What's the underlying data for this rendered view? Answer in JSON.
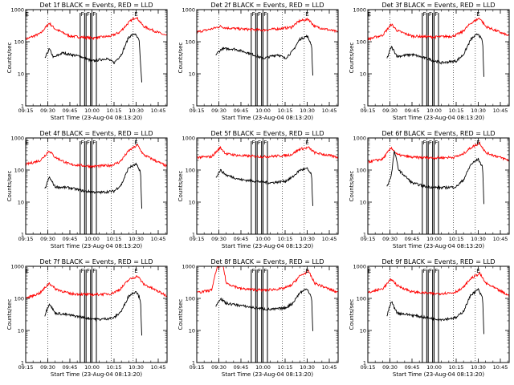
{
  "chart_data": {
    "type": "line",
    "shared": {
      "xlabel": "Start Time (23-Aug-04 08:13:20)",
      "ylabel": "Counts/sec",
      "x_tick_labels": [
        "09:15",
        "09:30",
        "09:45",
        "10:00",
        "10:15",
        "10:30",
        "10:45"
      ],
      "x_tick_minutes": [
        0,
        15,
        30,
        45,
        60,
        75,
        90
      ],
      "xlim_minutes": [
        0,
        96
      ],
      "y_scale": "log",
      "ylim": [
        1,
        1000
      ],
      "y_tick_labels": [
        "1",
        "10",
        "100",
        "1000"
      ],
      "y_tick_values": [
        1,
        10,
        100,
        1000
      ],
      "dotted_vertical_lines_minutes": [
        15,
        58,
        73
      ],
      "series_colors": {
        "events": "#000000",
        "lld": "#ff0000"
      }
    },
    "panels": [
      {
        "title": "Det 1f BLACK = Events, RED = LLD",
        "markers": [
          "E",
          "F",
          "F",
          "F",
          "E"
        ],
        "marker_minutes": [
          1,
          38.5,
          42.5,
          46.5,
          75
        ],
        "band_edges": [
          [
            37,
            40
          ],
          [
            41,
            44
          ],
          [
            45,
            48
          ]
        ],
        "events_keypoints": [
          [
            13,
            30
          ],
          [
            16,
            60
          ],
          [
            19,
            32
          ],
          [
            25,
            45
          ],
          [
            30,
            40
          ],
          [
            37,
            35
          ],
          [
            45,
            25
          ],
          [
            55,
            30
          ],
          [
            60,
            22
          ],
          [
            65,
            40
          ],
          [
            70,
            140
          ],
          [
            74,
            180
          ],
          [
            77,
            110
          ],
          [
            79,
            4
          ]
        ],
        "lld_keypoints": [
          [
            0,
            120
          ],
          [
            10,
            180
          ],
          [
            16,
            380
          ],
          [
            20,
            250
          ],
          [
            30,
            150
          ],
          [
            45,
            130
          ],
          [
            58,
            150
          ],
          [
            64,
            200
          ],
          [
            70,
            400
          ],
          [
            75,
            600
          ],
          [
            80,
            300
          ],
          [
            96,
            150
          ]
        ]
      },
      {
        "title": "Det 2f BLACK = Events, RED = LLD",
        "markers": [
          "F",
          "F",
          "F",
          "E"
        ],
        "marker_minutes": [
          38.5,
          42.5,
          46.5,
          75
        ],
        "band_edges": [
          [
            37,
            40
          ],
          [
            41,
            44
          ],
          [
            45,
            48
          ]
        ],
        "events_keypoints": [
          [
            13,
            40
          ],
          [
            17,
            60
          ],
          [
            25,
            60
          ],
          [
            35,
            45
          ],
          [
            45,
            30
          ],
          [
            55,
            40
          ],
          [
            60,
            30
          ],
          [
            65,
            50
          ],
          [
            70,
            120
          ],
          [
            75,
            150
          ],
          [
            78,
            80
          ],
          [
            79,
            5
          ]
        ],
        "lld_keypoints": [
          [
            0,
            200
          ],
          [
            10,
            250
          ],
          [
            16,
            300
          ],
          [
            20,
            270
          ],
          [
            30,
            250
          ],
          [
            45,
            230
          ],
          [
            58,
            260
          ],
          [
            64,
            280
          ],
          [
            70,
            450
          ],
          [
            76,
            500
          ],
          [
            80,
            300
          ],
          [
            96,
            200
          ]
        ]
      },
      {
        "title": "Det 3f BLACK = Events, RED = LLD",
        "markers": [
          "E",
          "F",
          "F",
          "F",
          "E"
        ],
        "marker_minutes": [
          1,
          38.5,
          42.5,
          46.5,
          75
        ],
        "band_edges": [
          [
            37,
            40
          ],
          [
            41,
            44
          ],
          [
            45,
            48
          ]
        ],
        "events_keypoints": [
          [
            13,
            30
          ],
          [
            16,
            70
          ],
          [
            20,
            35
          ],
          [
            30,
            40
          ],
          [
            40,
            30
          ],
          [
            50,
            22
          ],
          [
            60,
            25
          ],
          [
            65,
            40
          ],
          [
            70,
            120
          ],
          [
            75,
            180
          ],
          [
            78,
            100
          ],
          [
            79,
            4
          ]
        ],
        "lld_keypoints": [
          [
            0,
            120
          ],
          [
            10,
            160
          ],
          [
            16,
            350
          ],
          [
            20,
            220
          ],
          [
            30,
            150
          ],
          [
            45,
            140
          ],
          [
            58,
            150
          ],
          [
            64,
            200
          ],
          [
            70,
            380
          ],
          [
            76,
            550
          ],
          [
            80,
            300
          ],
          [
            96,
            150
          ]
        ]
      },
      {
        "title": "Det 4f BLACK = Events, RED = LLD",
        "markers": [
          "E",
          "F",
          "F",
          "F",
          "E"
        ],
        "marker_minutes": [
          1,
          38.5,
          42.5,
          46.5,
          75
        ],
        "band_edges": [
          [
            37,
            40
          ],
          [
            41,
            44
          ],
          [
            45,
            48
          ]
        ],
        "events_keypoints": [
          [
            13,
            25
          ],
          [
            16,
            60
          ],
          [
            20,
            30
          ],
          [
            30,
            28
          ],
          [
            40,
            22
          ],
          [
            50,
            20
          ],
          [
            60,
            22
          ],
          [
            65,
            35
          ],
          [
            70,
            120
          ],
          [
            75,
            150
          ],
          [
            78,
            90
          ],
          [
            79,
            3
          ]
        ],
        "lld_keypoints": [
          [
            0,
            150
          ],
          [
            10,
            200
          ],
          [
            16,
            400
          ],
          [
            20,
            250
          ],
          [
            30,
            150
          ],
          [
            45,
            130
          ],
          [
            58,
            140
          ],
          [
            64,
            180
          ],
          [
            70,
            400
          ],
          [
            76,
            600
          ],
          [
            80,
            300
          ],
          [
            96,
            130
          ]
        ]
      },
      {
        "title": "Det 5f BLACK = Events, RED = LLD",
        "markers": [
          "F",
          "F",
          "F",
          "E"
        ],
        "marker_minutes": [
          38.5,
          42.5,
          46.5,
          75
        ],
        "band_edges": [
          [
            37,
            40
          ],
          [
            41,
            44
          ],
          [
            45,
            48
          ]
        ],
        "events_keypoints": [
          [
            13,
            60
          ],
          [
            16,
            100
          ],
          [
            20,
            70
          ],
          [
            30,
            50
          ],
          [
            40,
            45
          ],
          [
            50,
            40
          ],
          [
            60,
            45
          ],
          [
            65,
            60
          ],
          [
            70,
            100
          ],
          [
            75,
            110
          ],
          [
            78,
            70
          ],
          [
            79,
            4
          ]
        ],
        "lld_keypoints": [
          [
            0,
            250
          ],
          [
            10,
            260
          ],
          [
            16,
            500
          ],
          [
            20,
            320
          ],
          [
            30,
            280
          ],
          [
            45,
            260
          ],
          [
            58,
            280
          ],
          [
            64,
            300
          ],
          [
            70,
            450
          ],
          [
            76,
            500
          ],
          [
            80,
            350
          ],
          [
            96,
            250
          ]
        ]
      },
      {
        "title": "Det 6f BLACK = Events, RED = LLD",
        "markers": [
          "F",
          "F",
          "F",
          "E"
        ],
        "marker_minutes": [
          38.5,
          42.5,
          46.5,
          75
        ],
        "band_edges": [
          [
            37,
            40
          ],
          [
            41,
            44
          ],
          [
            45,
            48
          ]
        ],
        "events_keypoints": [
          [
            13,
            30
          ],
          [
            16,
            70
          ],
          [
            18,
            400
          ],
          [
            21,
            100
          ],
          [
            30,
            40
          ],
          [
            40,
            30
          ],
          [
            50,
            28
          ],
          [
            60,
            30
          ],
          [
            65,
            50
          ],
          [
            70,
            150
          ],
          [
            75,
            220
          ],
          [
            78,
            120
          ],
          [
            79,
            5
          ]
        ],
        "lld_keypoints": [
          [
            0,
            180
          ],
          [
            10,
            220
          ],
          [
            16,
            500
          ],
          [
            20,
            300
          ],
          [
            30,
            250
          ],
          [
            45,
            240
          ],
          [
            58,
            250
          ],
          [
            64,
            300
          ],
          [
            70,
            500
          ],
          [
            76,
            700
          ],
          [
            80,
            350
          ],
          [
            96,
            200
          ]
        ]
      },
      {
        "title": "Det 7f BLACK = Events, RED = LLD",
        "markers": [
          "E",
          "F",
          "F",
          "F",
          "E"
        ],
        "marker_minutes": [
          1,
          38.5,
          42.5,
          46.5,
          75
        ],
        "band_edges": [
          [
            37,
            40
          ],
          [
            41,
            44
          ],
          [
            45,
            48
          ]
        ],
        "events_keypoints": [
          [
            13,
            30
          ],
          [
            16,
            70
          ],
          [
            20,
            35
          ],
          [
            30,
            30
          ],
          [
            40,
            25
          ],
          [
            50,
            22
          ],
          [
            60,
            25
          ],
          [
            65,
            40
          ],
          [
            70,
            120
          ],
          [
            75,
            170
          ],
          [
            78,
            90
          ],
          [
            79,
            4
          ]
        ],
        "lld_keypoints": [
          [
            0,
            100
          ],
          [
            10,
            150
          ],
          [
            16,
            300
          ],
          [
            20,
            200
          ],
          [
            30,
            140
          ],
          [
            45,
            130
          ],
          [
            58,
            140
          ],
          [
            64,
            190
          ],
          [
            70,
            380
          ],
          [
            76,
            500
          ],
          [
            80,
            280
          ],
          [
            96,
            120
          ]
        ]
      },
      {
        "title": "Det 8f BLACK = Events, RED = LLD",
        "markers": [
          "F",
          "F",
          "F",
          "E"
        ],
        "marker_minutes": [
          38.5,
          42.5,
          46.5,
          75
        ],
        "band_edges": [
          [
            37,
            40
          ],
          [
            41,
            44
          ],
          [
            45,
            48
          ]
        ],
        "events_keypoints": [
          [
            13,
            60
          ],
          [
            16,
            100
          ],
          [
            20,
            70
          ],
          [
            30,
            60
          ],
          [
            40,
            50
          ],
          [
            50,
            45
          ],
          [
            60,
            50
          ],
          [
            65,
            70
          ],
          [
            70,
            150
          ],
          [
            75,
            200
          ],
          [
            78,
            110
          ],
          [
            79,
            5
          ]
        ],
        "lld_keypoints": [
          [
            0,
            150
          ],
          [
            10,
            180
          ],
          [
            14,
            1000
          ],
          [
            18,
            1000
          ],
          [
            20,
            300
          ],
          [
            30,
            200
          ],
          [
            45,
            180
          ],
          [
            58,
            200
          ],
          [
            64,
            250
          ],
          [
            70,
            500
          ],
          [
            76,
            700
          ],
          [
            80,
            300
          ],
          [
            96,
            150
          ]
        ]
      },
      {
        "title": "Det 9f BLACK = Events, RED = LLD",
        "markers": [
          "E",
          "F",
          "F",
          "F",
          "E"
        ],
        "marker_minutes": [
          1,
          38.5,
          42.5,
          46.5,
          75
        ],
        "band_edges": [
          [
            37,
            40
          ],
          [
            41,
            44
          ],
          [
            45,
            48
          ]
        ],
        "events_keypoints": [
          [
            13,
            30
          ],
          [
            16,
            80
          ],
          [
            20,
            35
          ],
          [
            30,
            30
          ],
          [
            40,
            25
          ],
          [
            50,
            22
          ],
          [
            60,
            25
          ],
          [
            65,
            40
          ],
          [
            70,
            130
          ],
          [
            75,
            190
          ],
          [
            78,
            100
          ],
          [
            79,
            4
          ]
        ],
        "lld_keypoints": [
          [
            0,
            150
          ],
          [
            10,
            200
          ],
          [
            16,
            400
          ],
          [
            20,
            250
          ],
          [
            30,
            160
          ],
          [
            45,
            140
          ],
          [
            58,
            150
          ],
          [
            64,
            200
          ],
          [
            70,
            420
          ],
          [
            76,
            600
          ],
          [
            80,
            300
          ],
          [
            96,
            120
          ]
        ]
      }
    ]
  }
}
